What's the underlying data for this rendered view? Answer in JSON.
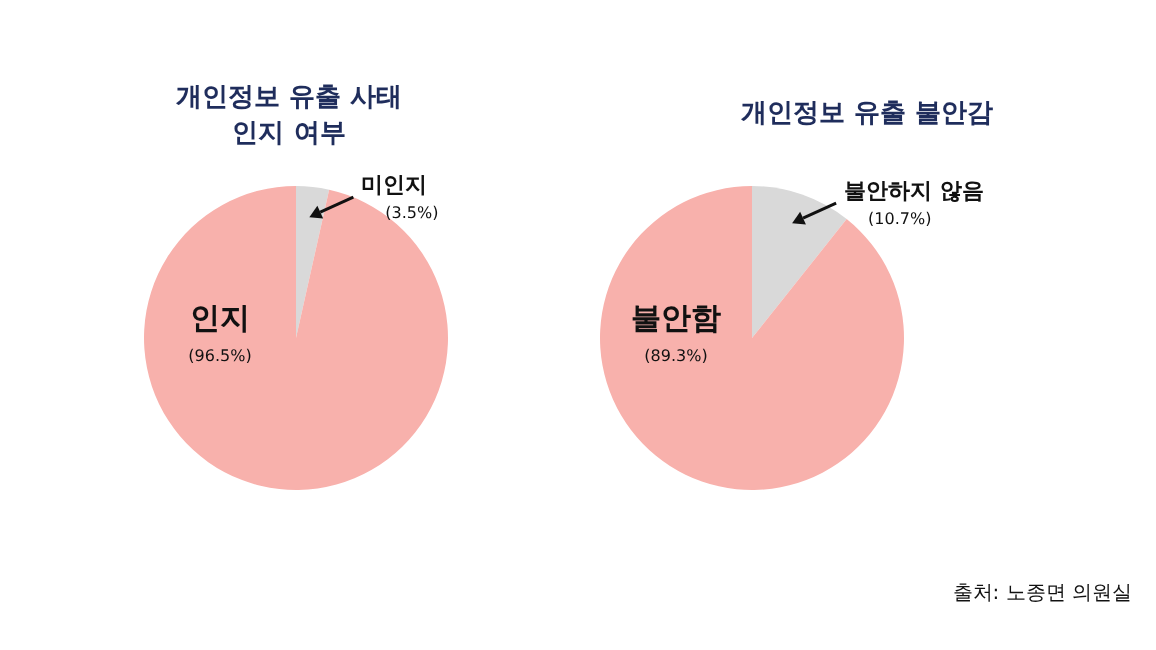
{
  "chart_data": [
    {
      "type": "pie",
      "title": "개인정보 유출 사태\n인지 여부",
      "categories": [
        "미인지",
        "인지"
      ],
      "values": [
        3.5,
        96.5
      ],
      "colors": [
        "#d9d9d9",
        "#f8b1ac"
      ],
      "value_labels": [
        "(3.5%)",
        "(96.5%)"
      ]
    },
    {
      "type": "pie",
      "title": "개인정보 유출 불안감",
      "categories": [
        "불안하지 않음",
        "불안함"
      ],
      "values": [
        10.7,
        89.3
      ],
      "colors": [
        "#d9d9d9",
        "#f8b1ac"
      ],
      "value_labels": [
        "(10.7%)",
        "(89.3%)"
      ],
      "annotations": [
        "출처: 노종면 의원실"
      ]
    }
  ]
}
